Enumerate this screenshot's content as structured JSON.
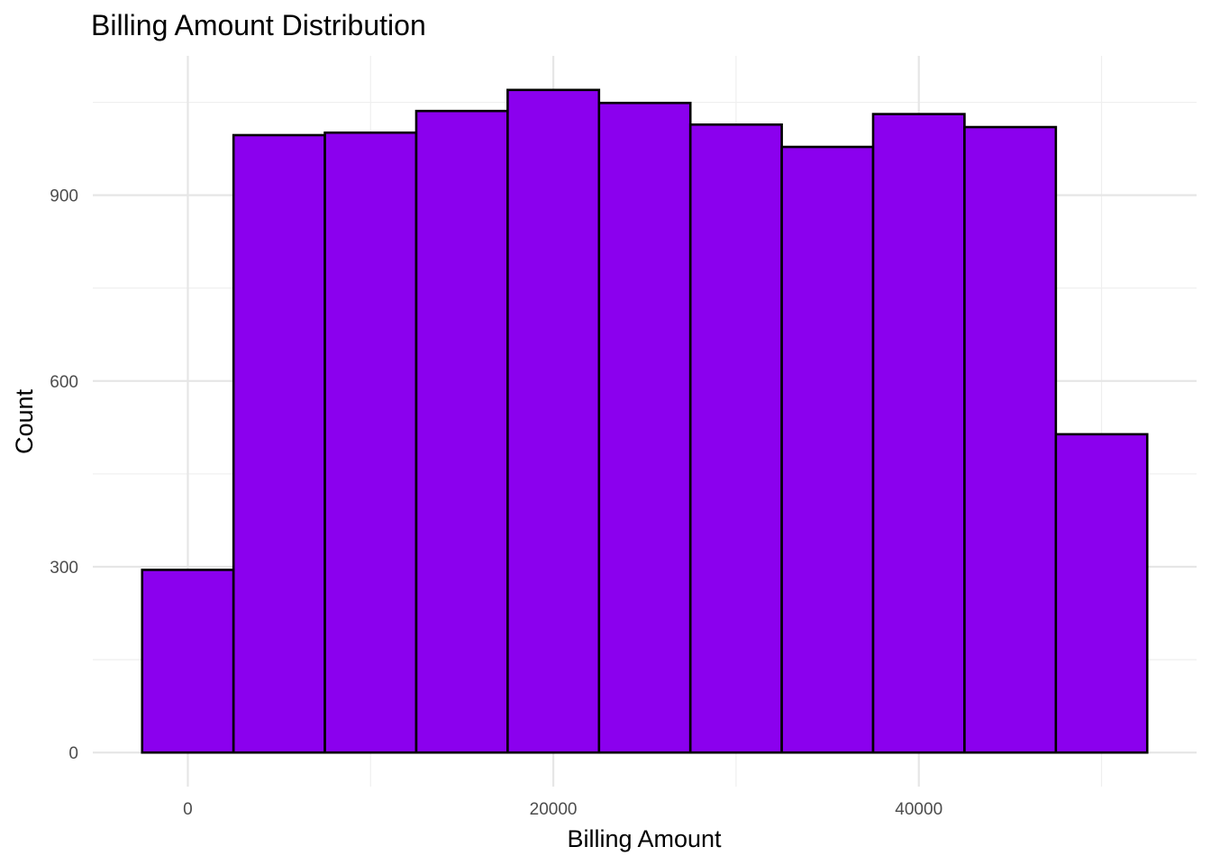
{
  "chart_data": {
    "type": "bar",
    "subtype": "histogram",
    "title": "Billing Amount Distribution",
    "xlabel": "Billing Amount",
    "ylabel": "Count",
    "bin_width": 5000,
    "bins": [
      {
        "start": -2500,
        "end": 2500,
        "count": 295
      },
      {
        "start": 2500,
        "end": 7500,
        "count": 997
      },
      {
        "start": 7500,
        "end": 12500,
        "count": 1001
      },
      {
        "start": 12500,
        "end": 17500,
        "count": 1036
      },
      {
        "start": 17500,
        "end": 22500,
        "count": 1070
      },
      {
        "start": 22500,
        "end": 27500,
        "count": 1049
      },
      {
        "start": 27500,
        "end": 32500,
        "count": 1014
      },
      {
        "start": 32500,
        "end": 37500,
        "count": 978
      },
      {
        "start": 37500,
        "end": 42500,
        "count": 1031
      },
      {
        "start": 42500,
        "end": 47500,
        "count": 1010
      },
      {
        "start": 47500,
        "end": 52500,
        "count": 514
      }
    ],
    "xlim": [
      -5200,
      55200
    ],
    "ylim": [
      -55,
      1125
    ],
    "x_ticks": [
      0,
      20000,
      40000
    ],
    "x_tick_labels": [
      "0",
      "20000",
      "40000"
    ],
    "x_minor_ticks": [
      10000,
      30000,
      50000
    ],
    "y_ticks": [
      0,
      300,
      600,
      900
    ],
    "y_tick_labels": [
      "0",
      "300",
      "600",
      "900"
    ],
    "y_minor_ticks": [
      150,
      450,
      750,
      1050
    ],
    "grid": true,
    "legend": "none",
    "colors": {
      "bar_fill": "#8B00EE",
      "bar_outline": "#000000",
      "background": "#ffffff"
    }
  }
}
